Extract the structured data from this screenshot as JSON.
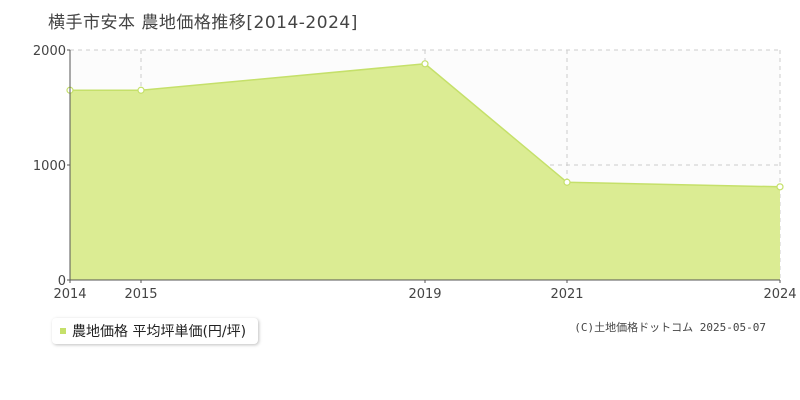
{
  "chart_data": {
    "type": "area",
    "title": "横手市安本 農地価格推移[2014-2024]",
    "xlabel": "",
    "ylabel": "",
    "x": [
      2014,
      2015,
      2019,
      2021,
      2024
    ],
    "x_tick_labels": [
      "2014",
      "2015",
      "2019",
      "2021",
      "2024"
    ],
    "y_ticks": [
      0,
      1000,
      2000
    ],
    "y_tick_labels": [
      "0",
      "1000",
      "2000"
    ],
    "ylim": [
      0,
      2000
    ],
    "grid": true,
    "legend_position": "bottom-left",
    "series": [
      {
        "name": "農地価格 平均坪単価(円/坪)",
        "values": [
          1650,
          1650,
          1880,
          850,
          810
        ],
        "color": "#c5e06a",
        "fill_color": "#dbec93"
      }
    ]
  },
  "credit": "(C)土地価格ドットコム 2025-05-07"
}
